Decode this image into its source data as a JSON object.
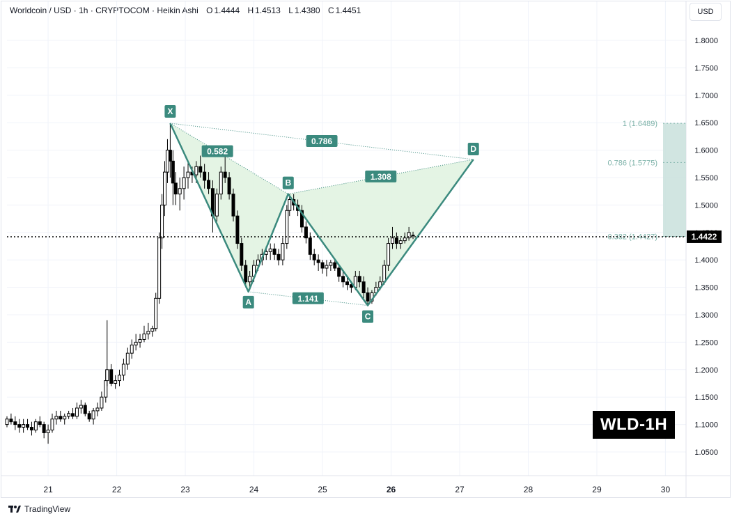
{
  "header": {
    "symbol": "Worldcoin / USD · 1h · CRYPTOCOM · Heikin Ashi",
    "open_label": "O",
    "open": "1.4444",
    "high_label": "H",
    "high": "1.4513",
    "low_label": "L",
    "low": "1.4380",
    "close_label": "C",
    "close": "1.4451"
  },
  "currency": "USD",
  "watermark": "WLD-1H",
  "brand": "TradingView",
  "colors": {
    "up": "#26a69a",
    "candle": "#000000",
    "pattern": "#3b8a7e",
    "pattern_fill": "#dff2df",
    "label_bg": "#3b8a7e",
    "fib_zone": "#c9e0dc"
  },
  "chart_data": {
    "type": "candlestick",
    "title": "",
    "xlabel": "",
    "ylabel": "",
    "ylim": [
      1.0,
      1.85
    ],
    "xlim": [
      20.4,
      30.3
    ],
    "x_ticks": [
      21,
      22,
      23,
      24,
      25,
      26,
      27,
      28,
      29,
      30
    ],
    "x_tick_labels": [
      "21",
      "22",
      "23",
      "24",
      "25",
      "26",
      "27",
      "28",
      "29",
      "30"
    ],
    "y_ticks": [
      "1.0500",
      "1.1000",
      "1.1500",
      "1.2000",
      "1.2500",
      "1.3000",
      "1.3500",
      "1.4000",
      "1.4500",
      "1.5000",
      "1.5500",
      "1.6000",
      "1.6500",
      "1.7000",
      "1.7500",
      "1.8000"
    ],
    "grid": true,
    "current_price": "1.4422",
    "candles": [
      [
        20.4,
        1.1,
        1.115,
        1.095,
        1.11
      ],
      [
        20.46,
        1.11,
        1.12,
        1.1,
        1.105
      ],
      [
        20.52,
        1.105,
        1.115,
        1.09,
        1.1
      ],
      [
        20.58,
        1.1,
        1.11,
        1.085,
        1.095
      ],
      [
        20.64,
        1.095,
        1.11,
        1.085,
        1.1
      ],
      [
        20.7,
        1.1,
        1.11,
        1.09,
        1.095
      ],
      [
        20.76,
        1.095,
        1.105,
        1.08,
        1.09
      ],
      [
        20.82,
        1.09,
        1.11,
        1.085,
        1.105
      ],
      [
        20.88,
        1.105,
        1.115,
        1.095,
        1.1
      ],
      [
        20.94,
        1.1,
        1.105,
        1.075,
        1.085
      ],
      [
        21.0,
        1.085,
        1.1,
        1.065,
        1.09
      ],
      [
        21.06,
        1.09,
        1.12,
        1.085,
        1.11
      ],
      [
        21.12,
        1.11,
        1.125,
        1.1,
        1.115
      ],
      [
        21.18,
        1.115,
        1.125,
        1.105,
        1.11
      ],
      [
        21.24,
        1.11,
        1.12,
        1.1,
        1.115
      ],
      [
        21.3,
        1.115,
        1.125,
        1.11,
        1.12
      ],
      [
        21.36,
        1.12,
        1.13,
        1.11,
        1.115
      ],
      [
        21.42,
        1.115,
        1.14,
        1.11,
        1.13
      ],
      [
        21.48,
        1.13,
        1.145,
        1.12,
        1.135
      ],
      [
        21.54,
        1.135,
        1.14,
        1.115,
        1.12
      ],
      [
        21.6,
        1.12,
        1.125,
        1.105,
        1.11
      ],
      [
        21.66,
        1.11,
        1.13,
        1.1,
        1.125
      ],
      [
        21.72,
        1.125,
        1.14,
        1.115,
        1.13
      ],
      [
        21.78,
        1.13,
        1.16,
        1.125,
        1.15
      ],
      [
        21.84,
        1.15,
        1.2,
        1.14,
        1.18
      ],
      [
        21.86,
        1.18,
        1.29,
        1.17,
        1.2
      ],
      [
        21.92,
        1.2,
        1.21,
        1.17,
        1.175
      ],
      [
        21.98,
        1.175,
        1.19,
        1.165,
        1.18
      ],
      [
        22.04,
        1.18,
        1.2,
        1.17,
        1.19
      ],
      [
        22.1,
        1.19,
        1.22,
        1.18,
        1.21
      ],
      [
        22.16,
        1.21,
        1.24,
        1.2,
        1.23
      ],
      [
        22.22,
        1.23,
        1.255,
        1.22,
        1.245
      ],
      [
        22.28,
        1.245,
        1.265,
        1.235,
        1.25
      ],
      [
        22.34,
        1.25,
        1.265,
        1.24,
        1.255
      ],
      [
        22.4,
        1.255,
        1.28,
        1.25,
        1.265
      ],
      [
        22.46,
        1.265,
        1.285,
        1.255,
        1.27
      ],
      [
        22.52,
        1.27,
        1.28,
        1.26,
        1.275
      ],
      [
        22.57,
        1.275,
        1.34,
        1.27,
        1.33
      ],
      [
        22.62,
        1.33,
        1.45,
        1.32,
        1.44
      ],
      [
        22.66,
        1.44,
        1.52,
        1.42,
        1.5
      ],
      [
        22.7,
        1.5,
        1.58,
        1.48,
        1.56
      ],
      [
        22.74,
        1.56,
        1.62,
        1.54,
        1.6
      ],
      [
        22.78,
        1.6,
        1.649,
        1.55,
        1.58
      ],
      [
        22.82,
        1.58,
        1.6,
        1.5,
        1.54
      ],
      [
        22.86,
        1.54,
        1.56,
        1.5,
        1.52
      ],
      [
        22.92,
        1.52,
        1.55,
        1.49,
        1.53
      ],
      [
        22.98,
        1.53,
        1.57,
        1.51,
        1.55
      ],
      [
        23.04,
        1.55,
        1.58,
        1.53,
        1.56
      ],
      [
        23.1,
        1.56,
        1.57,
        1.54,
        1.555
      ],
      [
        23.16,
        1.555,
        1.58,
        1.54,
        1.57
      ],
      [
        23.22,
        1.57,
        1.59,
        1.55,
        1.56
      ],
      [
        23.28,
        1.56,
        1.575,
        1.53,
        1.545
      ],
      [
        23.34,
        1.545,
        1.56,
        1.52,
        1.53
      ],
      [
        23.4,
        1.53,
        1.545,
        1.45,
        1.48
      ],
      [
        23.46,
        1.48,
        1.53,
        1.47,
        1.52
      ],
      [
        23.52,
        1.52,
        1.57,
        1.51,
        1.56
      ],
      [
        23.58,
        1.56,
        1.59,
        1.54,
        1.55
      ],
      [
        23.64,
        1.55,
        1.56,
        1.51,
        1.52
      ],
      [
        23.7,
        1.52,
        1.53,
        1.47,
        1.48
      ],
      [
        23.76,
        1.48,
        1.49,
        1.42,
        1.43
      ],
      [
        23.82,
        1.43,
        1.44,
        1.38,
        1.39
      ],
      [
        23.88,
        1.39,
        1.4,
        1.35,
        1.36
      ],
      [
        23.94,
        1.36,
        1.38,
        1.345,
        1.37
      ],
      [
        24.0,
        1.37,
        1.4,
        1.36,
        1.39
      ],
      [
        24.06,
        1.39,
        1.41,
        1.38,
        1.4
      ],
      [
        24.12,
        1.4,
        1.42,
        1.39,
        1.41
      ],
      [
        24.18,
        1.41,
        1.425,
        1.4,
        1.415
      ],
      [
        24.24,
        1.415,
        1.43,
        1.4,
        1.42
      ],
      [
        24.3,
        1.42,
        1.43,
        1.4,
        1.41
      ],
      [
        24.36,
        1.41,
        1.42,
        1.39,
        1.4
      ],
      [
        24.42,
        1.4,
        1.44,
        1.39,
        1.43
      ],
      [
        24.48,
        1.43,
        1.5,
        1.42,
        1.49
      ],
      [
        24.52,
        1.49,
        1.52,
        1.48,
        1.51
      ],
      [
        24.58,
        1.51,
        1.52,
        1.49,
        1.5
      ],
      [
        24.64,
        1.5,
        1.51,
        1.48,
        1.49
      ],
      [
        24.7,
        1.49,
        1.5,
        1.45,
        1.46
      ],
      [
        24.76,
        1.46,
        1.47,
        1.43,
        1.44
      ],
      [
        24.82,
        1.44,
        1.45,
        1.4,
        1.41
      ],
      [
        24.88,
        1.41,
        1.42,
        1.39,
        1.4
      ],
      [
        24.94,
        1.4,
        1.41,
        1.38,
        1.395
      ],
      [
        25.0,
        1.395,
        1.4,
        1.375,
        1.385
      ],
      [
        25.06,
        1.385,
        1.4,
        1.37,
        1.39
      ],
      [
        25.12,
        1.39,
        1.4,
        1.38,
        1.395
      ],
      [
        25.18,
        1.395,
        1.4,
        1.38,
        1.385
      ],
      [
        25.24,
        1.385,
        1.39,
        1.36,
        1.37
      ],
      [
        25.3,
        1.37,
        1.38,
        1.35,
        1.36
      ],
      [
        25.36,
        1.36,
        1.37,
        1.345,
        1.355
      ],
      [
        25.42,
        1.355,
        1.36,
        1.34,
        1.35
      ],
      [
        25.48,
        1.35,
        1.38,
        1.345,
        1.37
      ],
      [
        25.54,
        1.37,
        1.38,
        1.35,
        1.36
      ],
      [
        25.6,
        1.36,
        1.37,
        1.33,
        1.34
      ],
      [
        25.66,
        1.34,
        1.35,
        1.317,
        1.325
      ],
      [
        25.72,
        1.325,
        1.345,
        1.32,
        1.34
      ],
      [
        25.78,
        1.34,
        1.36,
        1.335,
        1.35
      ],
      [
        25.84,
        1.35,
        1.37,
        1.345,
        1.36
      ],
      [
        25.9,
        1.36,
        1.4,
        1.355,
        1.39
      ],
      [
        25.96,
        1.39,
        1.44,
        1.38,
        1.43
      ],
      [
        26.02,
        1.43,
        1.46,
        1.42,
        1.44
      ],
      [
        26.08,
        1.44,
        1.45,
        1.42,
        1.43
      ],
      [
        26.14,
        1.43,
        1.44,
        1.42,
        1.435
      ],
      [
        26.2,
        1.435,
        1.45,
        1.43,
        1.44
      ],
      [
        26.26,
        1.44,
        1.46,
        1.435,
        1.45
      ],
      [
        26.32,
        1.4444,
        1.4513,
        1.438,
        1.4451
      ]
    ],
    "pattern": {
      "points": [
        {
          "name": "X",
          "x": 22.78,
          "y": 1.649
        },
        {
          "name": "A",
          "x": 23.92,
          "y": 1.342
        },
        {
          "name": "B",
          "x": 24.5,
          "y": 1.52
        },
        {
          "name": "C",
          "x": 25.66,
          "y": 1.317
        },
        {
          "name": "D",
          "x": 27.2,
          "y": 1.583
        }
      ],
      "ratios": [
        {
          "label": "0.582",
          "from": "X",
          "to": "B"
        },
        {
          "label": "0.786",
          "from": "X",
          "to": "D"
        },
        {
          "label": "1.308",
          "from": "B",
          "to": "D"
        },
        {
          "label": "1.141",
          "from": "A",
          "to": "C"
        }
      ]
    },
    "fib_levels": [
      {
        "label": "1 (1.6489)",
        "value": 1.6489
      },
      {
        "label": "0.786 (1.5775)",
        "value": 1.5775
      },
      {
        "label": "0.382 (1.4427)",
        "value": 1.4427
      }
    ]
  }
}
